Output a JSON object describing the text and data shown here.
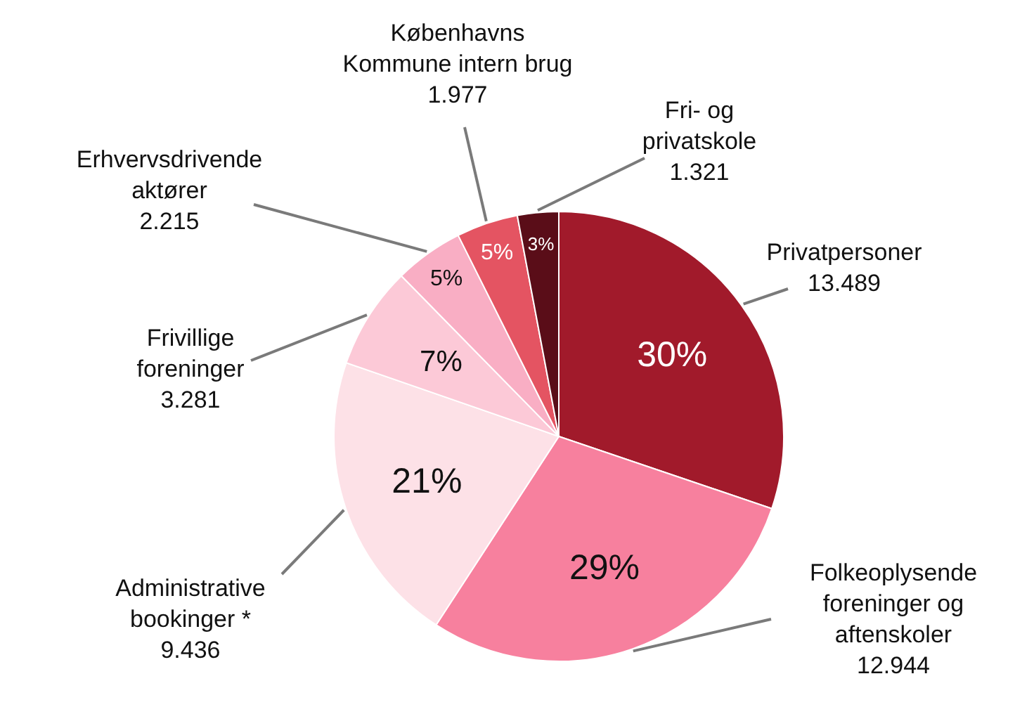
{
  "chart_data": {
    "type": "pie",
    "categories": [
      "Privatpersoner",
      "Folkeoplysende\nforeninger og\naftenskoler",
      "Administrative\nbookinger *",
      "Frivillige\nforeninger",
      "Erhvervsdrivende\naktører",
      "Københavns\nKommune intern brug",
      "Fri- og\nprivatskole"
    ],
    "values": [
      13489,
      12944,
      9436,
      3281,
      2215,
      1977,
      1321
    ],
    "value_labels": [
      "13.489",
      "12.944",
      "9.436",
      "3.281",
      "2.215",
      "1.977",
      "1.321"
    ],
    "annotations": [
      "30%",
      "29%",
      "21%",
      "7%",
      "5%",
      "5%",
      "3%"
    ],
    "colors": [
      "#a11a2b",
      "#f7809e",
      "#fde1e7",
      "#fcc9d7",
      "#f9aec4",
      "#e45462",
      "#5a0d18"
    ]
  }
}
